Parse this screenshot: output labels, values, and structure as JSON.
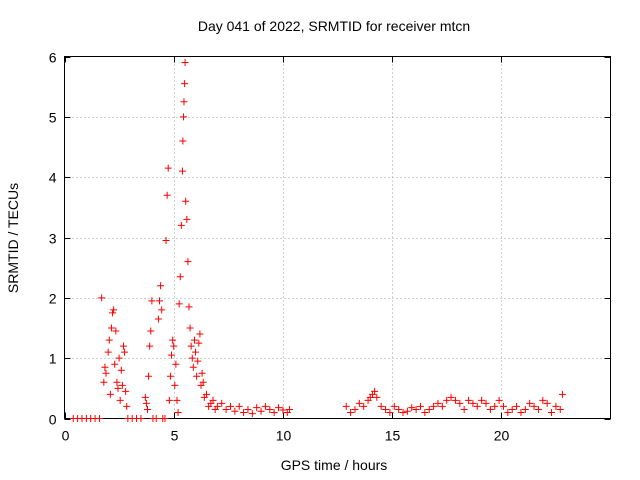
{
  "chart_data": {
    "type": "scatter",
    "title": "Day 041 of 2022, SRMTID for receiver mtcn",
    "xlabel": "GPS time / hours",
    "ylabel": "SRMTID / TECUs",
    "xlim": [
      0,
      25
    ],
    "ylim": [
      0,
      6
    ],
    "xticks": [
      0,
      5,
      10,
      15,
      20
    ],
    "yticks": [
      0,
      1,
      2,
      3,
      4,
      5,
      6
    ],
    "grid": true,
    "marker": "+",
    "color": "#ff0000",
    "series": [
      {
        "name": "SRMTID",
        "points": [
          [
            0.4,
            0.0
          ],
          [
            0.6,
            0.0
          ],
          [
            0.8,
            0.0
          ],
          [
            1.0,
            0.0
          ],
          [
            1.2,
            0.0
          ],
          [
            1.4,
            0.0
          ],
          [
            1.6,
            0.0
          ],
          [
            1.7,
            2.0
          ],
          [
            1.8,
            0.6
          ],
          [
            1.85,
            0.85
          ],
          [
            1.9,
            0.75
          ],
          [
            2.0,
            1.1
          ],
          [
            2.05,
            1.3
          ],
          [
            2.1,
            0.4
          ],
          [
            2.15,
            1.5
          ],
          [
            2.2,
            1.75
          ],
          [
            2.25,
            1.8
          ],
          [
            2.3,
            0.9
          ],
          [
            2.35,
            1.45
          ],
          [
            2.4,
            0.6
          ],
          [
            2.45,
            0.5
          ],
          [
            2.5,
            1.0
          ],
          [
            2.55,
            0.3
          ],
          [
            2.6,
            0.8
          ],
          [
            2.65,
            0.55
          ],
          [
            2.7,
            1.2
          ],
          [
            2.75,
            1.1
          ],
          [
            2.8,
            0.45
          ],
          [
            2.85,
            0.2
          ],
          [
            2.9,
            0.0
          ],
          [
            3.1,
            0.0
          ],
          [
            3.3,
            0.0
          ],
          [
            3.5,
            0.0
          ],
          [
            3.7,
            0.35
          ],
          [
            3.75,
            0.25
          ],
          [
            3.8,
            0.15
          ],
          [
            3.85,
            0.7
          ],
          [
            3.9,
            1.2
          ],
          [
            3.95,
            1.45
          ],
          [
            4.0,
            1.95
          ],
          [
            4.05,
            0.0
          ],
          [
            4.2,
            0.0
          ],
          [
            4.3,
            1.65
          ],
          [
            4.35,
            1.95
          ],
          [
            4.4,
            2.2
          ],
          [
            4.45,
            1.8
          ],
          [
            4.5,
            0.0
          ],
          [
            4.6,
            0.0
          ],
          [
            4.65,
            2.95
          ],
          [
            4.7,
            3.7
          ],
          [
            4.75,
            4.15
          ],
          [
            4.8,
            0.3
          ],
          [
            4.85,
            0.7
          ],
          [
            4.9,
            1.05
          ],
          [
            4.95,
            1.3
          ],
          [
            5.0,
            1.2
          ],
          [
            5.05,
            0.55
          ],
          [
            5.1,
            0.9
          ],
          [
            5.15,
            0.3
          ],
          [
            5.2,
            0.1
          ],
          [
            5.25,
            1.9
          ],
          [
            5.3,
            2.35
          ],
          [
            5.35,
            3.2
          ],
          [
            5.4,
            4.1
          ],
          [
            5.42,
            4.6
          ],
          [
            5.45,
            5.0
          ],
          [
            5.47,
            5.25
          ],
          [
            5.5,
            5.55
          ],
          [
            5.52,
            5.9
          ],
          [
            5.55,
            3.6
          ],
          [
            5.6,
            3.3
          ],
          [
            5.65,
            2.6
          ],
          [
            5.7,
            1.85
          ],
          [
            5.75,
            1.5
          ],
          [
            5.8,
            1.2
          ],
          [
            5.85,
            1.0
          ],
          [
            5.9,
            0.85
          ],
          [
            5.95,
            1.3
          ],
          [
            6.0,
            1.1
          ],
          [
            6.05,
            0.7
          ],
          [
            6.1,
            0.95
          ],
          [
            6.15,
            1.25
          ],
          [
            6.2,
            1.4
          ],
          [
            6.25,
            0.55
          ],
          [
            6.3,
            0.75
          ],
          [
            6.35,
            0.6
          ],
          [
            6.4,
            0.35
          ],
          [
            6.5,
            0.4
          ],
          [
            6.6,
            0.2
          ],
          [
            6.7,
            0.25
          ],
          [
            6.8,
            0.3
          ],
          [
            6.9,
            0.15
          ],
          [
            7.0,
            0.2
          ],
          [
            7.2,
            0.25
          ],
          [
            7.4,
            0.15
          ],
          [
            7.6,
            0.2
          ],
          [
            7.8,
            0.12
          ],
          [
            8.0,
            0.2
          ],
          [
            8.2,
            0.1
          ],
          [
            8.4,
            0.15
          ],
          [
            8.6,
            0.08
          ],
          [
            8.8,
            0.18
          ],
          [
            9.0,
            0.12
          ],
          [
            9.2,
            0.2
          ],
          [
            9.4,
            0.15
          ],
          [
            9.6,
            0.1
          ],
          [
            9.8,
            0.18
          ],
          [
            10.0,
            0.14
          ],
          [
            10.2,
            0.1
          ],
          [
            10.3,
            0.15
          ],
          [
            12.9,
            0.2
          ],
          [
            13.1,
            0.1
          ],
          [
            13.3,
            0.15
          ],
          [
            13.5,
            0.25
          ],
          [
            13.7,
            0.2
          ],
          [
            13.9,
            0.3
          ],
          [
            14.0,
            0.35
          ],
          [
            14.1,
            0.4
          ],
          [
            14.2,
            0.45
          ],
          [
            14.3,
            0.35
          ],
          [
            14.5,
            0.2
          ],
          [
            14.7,
            0.15
          ],
          [
            14.9,
            0.1
          ],
          [
            15.1,
            0.2
          ],
          [
            15.3,
            0.15
          ],
          [
            15.5,
            0.1
          ],
          [
            15.7,
            0.12
          ],
          [
            15.9,
            0.18
          ],
          [
            16.1,
            0.15
          ],
          [
            16.3,
            0.2
          ],
          [
            16.5,
            0.1
          ],
          [
            16.7,
            0.15
          ],
          [
            16.9,
            0.2
          ],
          [
            17.1,
            0.25
          ],
          [
            17.3,
            0.2
          ],
          [
            17.5,
            0.3
          ],
          [
            17.7,
            0.35
          ],
          [
            17.9,
            0.3
          ],
          [
            18.1,
            0.25
          ],
          [
            18.3,
            0.15
          ],
          [
            18.5,
            0.3
          ],
          [
            18.7,
            0.25
          ],
          [
            18.9,
            0.2
          ],
          [
            19.1,
            0.3
          ],
          [
            19.3,
            0.25
          ],
          [
            19.5,
            0.15
          ],
          [
            19.7,
            0.2
          ],
          [
            19.9,
            0.3
          ],
          [
            20.1,
            0.2
          ],
          [
            20.3,
            0.1
          ],
          [
            20.5,
            0.15
          ],
          [
            20.7,
            0.2
          ],
          [
            20.9,
            0.1
          ],
          [
            21.1,
            0.15
          ],
          [
            21.3,
            0.25
          ],
          [
            21.5,
            0.2
          ],
          [
            21.7,
            0.15
          ],
          [
            21.9,
            0.3
          ],
          [
            22.1,
            0.25
          ],
          [
            22.3,
            0.1
          ],
          [
            22.5,
            0.2
          ],
          [
            22.7,
            0.15
          ],
          [
            22.8,
            0.4
          ]
        ]
      }
    ]
  }
}
